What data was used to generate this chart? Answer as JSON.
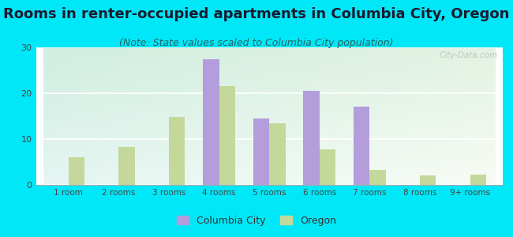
{
  "title": "Rooms in renter-occupied apartments in Columbia City, Oregon",
  "subtitle": "(Note: State values scaled to Columbia City population)",
  "categories": [
    "1 room",
    "2 rooms",
    "3 rooms",
    "4 rooms",
    "5 rooms",
    "6 rooms",
    "7 rooms",
    "8 rooms",
    "9+ rooms"
  ],
  "columbia_city": [
    0,
    0,
    0,
    27.5,
    14.5,
    20.5,
    17.0,
    0,
    0
  ],
  "oregon": [
    6.0,
    8.2,
    14.8,
    21.5,
    13.5,
    7.8,
    3.3,
    2.0,
    2.2
  ],
  "columbia_city_color": "#b39ddb",
  "oregon_color": "#c5d89b",
  "background_outer": "#00e8f8",
  "ylim": [
    0,
    30
  ],
  "yticks": [
    0,
    10,
    20,
    30
  ],
  "title_fontsize": 13,
  "subtitle_fontsize": 9,
  "bar_width": 0.32,
  "watermark": "City-Data.com"
}
